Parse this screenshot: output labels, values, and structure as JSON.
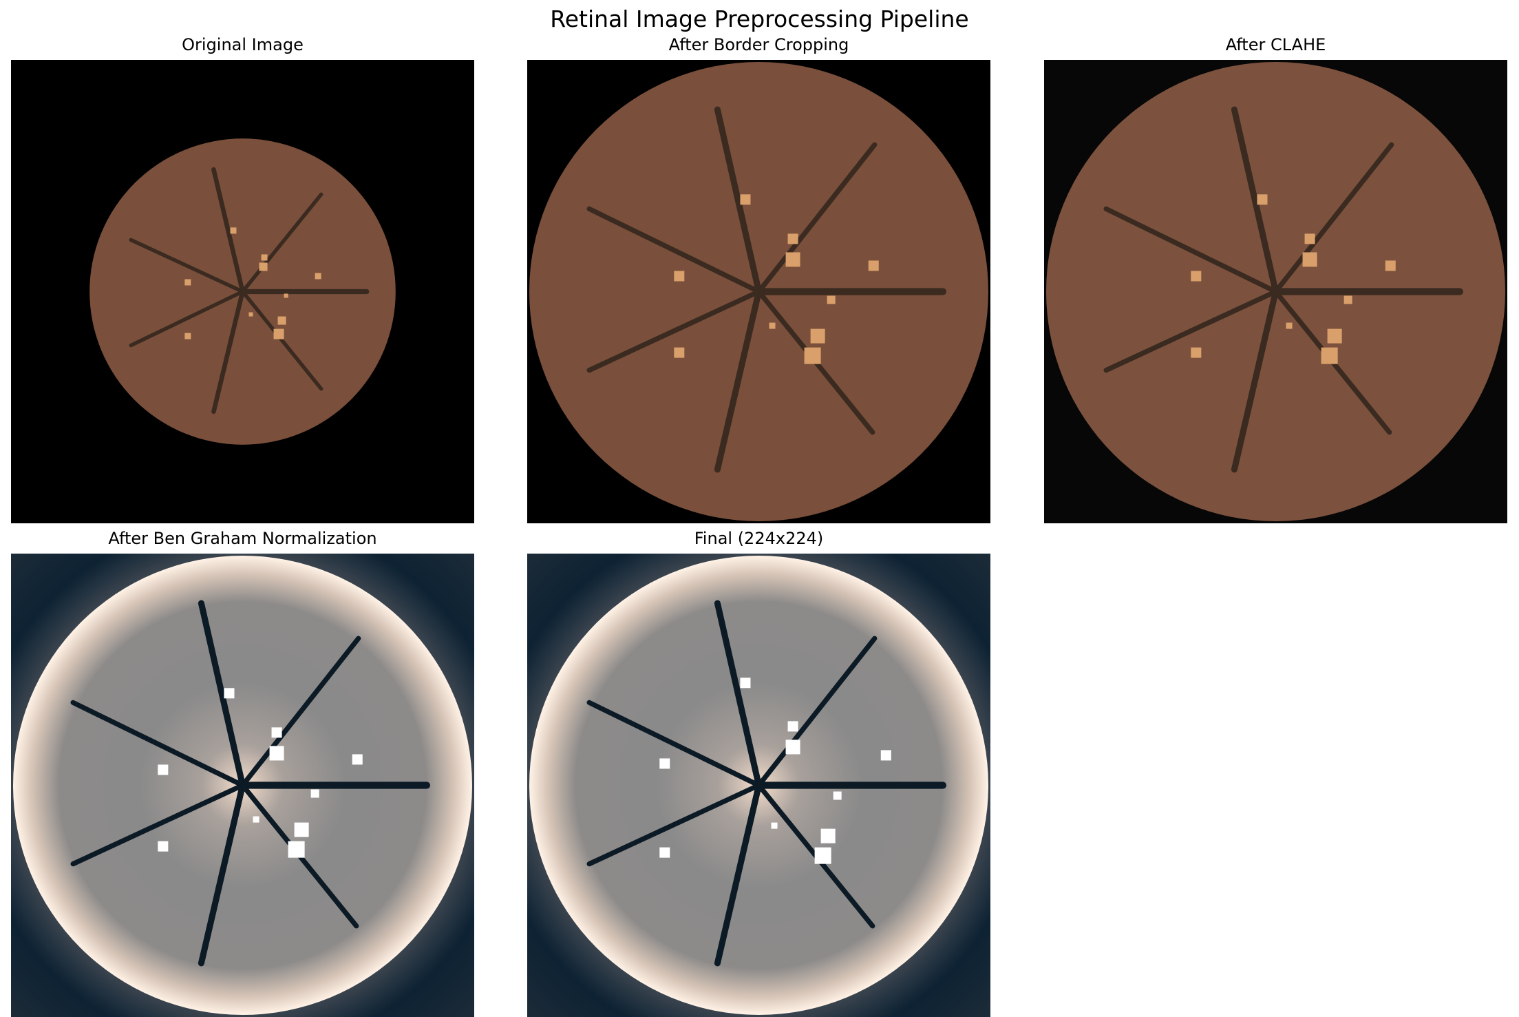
{
  "figure": {
    "title": "Retinal Image Preprocessing Pipeline"
  },
  "panels": [
    {
      "title": "Original Image",
      "style": "original"
    },
    {
      "title": "After Border Cropping",
      "style": "cropped"
    },
    {
      "title": "After CLAHE",
      "style": "clahe"
    },
    {
      "title": "After Ben Graham Normalization",
      "style": "bengraham"
    },
    {
      "title": "Final (224x224)",
      "style": "final"
    }
  ],
  "colors": {
    "fundus": "#7a4f3b",
    "fundus_clahe": "#7c523e",
    "vessel": "#3a2a20",
    "lesion": "#d9a06b",
    "background": "#000000",
    "normalized_gray": "#8a8a8a",
    "normalized_rim": "#fff2e6",
    "normalized_dark": "#0d2233",
    "normalized_lesion": "#ffffff"
  }
}
